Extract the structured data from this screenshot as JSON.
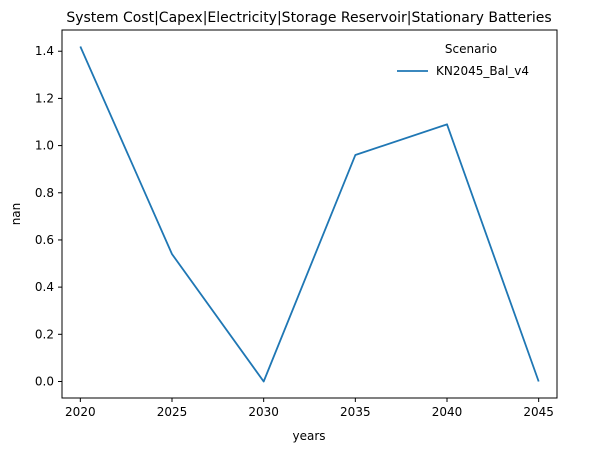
{
  "chart_data": {
    "type": "line",
    "title": "System Cost|Capex|Electricity|Storage Reservoir|Stationary Batteries",
    "xlabel": "years",
    "ylabel": "nan",
    "x": [
      2020,
      2025,
      2030,
      2035,
      2040,
      2045
    ],
    "xticks": [
      "2020",
      "2025",
      "2030",
      "2035",
      "2040",
      "2045"
    ],
    "yticks": [
      "0.0",
      "0.2",
      "0.4",
      "0.6",
      "0.8",
      "1.0",
      "1.2",
      "1.4"
    ],
    "ytick_values": [
      0.0,
      0.2,
      0.4,
      0.6,
      0.8,
      1.0,
      1.2,
      1.4
    ],
    "xlim": [
      2019,
      2046
    ],
    "ylim": [
      -0.07,
      1.49
    ],
    "grid": false,
    "legend": {
      "title": "Scenario",
      "placement": "top-right"
    },
    "series": [
      {
        "name": "KN2045_Bal_v4",
        "color": "#1f77b4",
        "values": [
          1.42,
          0.54,
          0.0,
          0.96,
          1.09,
          0.0
        ]
      }
    ]
  }
}
